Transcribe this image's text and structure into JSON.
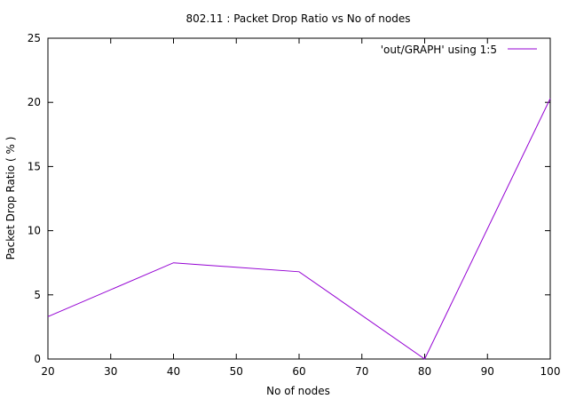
{
  "chart_data": {
    "type": "line",
    "title": "802.11 : Packet Drop Ratio vs No of nodes",
    "xlabel": "No of nodes",
    "ylabel": "Packet Drop Ratio ( % )",
    "xlim": [
      20,
      100
    ],
    "ylim": [
      0,
      25
    ],
    "xticks": [
      "20",
      "30",
      "40",
      "50",
      "60",
      "70",
      "80",
      "90",
      "100"
    ],
    "yticks": [
      "0",
      "5",
      "10",
      "15",
      "20",
      "25"
    ],
    "grid": false,
    "legend_position": "top-right",
    "series": [
      {
        "name": "'out/GRAPH' using 1:5",
        "color": "#9400d3",
        "points": [
          {
            "x": 20,
            "y": 3.3
          },
          {
            "x": 40,
            "y": 7.5
          },
          {
            "x": 60,
            "y": 6.8
          },
          {
            "x": 80,
            "y": 0.0
          },
          {
            "x": 100,
            "y": 20.3
          }
        ]
      }
    ]
  }
}
